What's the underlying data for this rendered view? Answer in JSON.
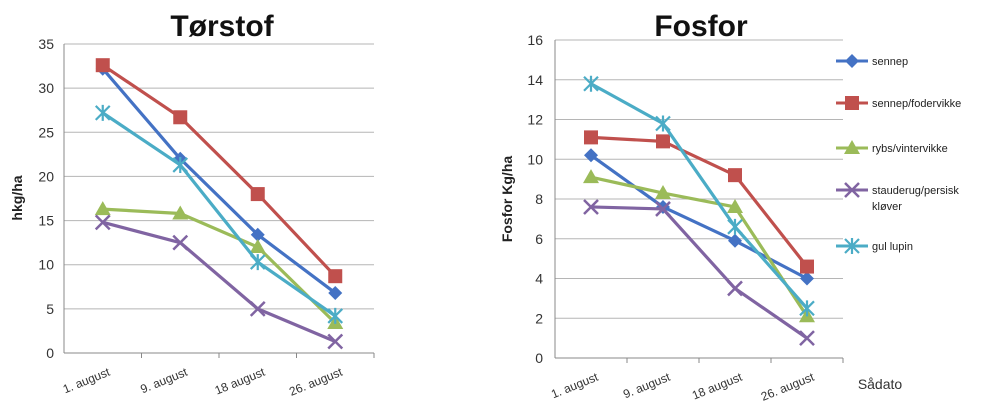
{
  "chart_data": [
    {
      "type": "line",
      "title": "Tørstof",
      "xlabel": "",
      "ylabel": "hkg/ha",
      "categories": [
        "1. august",
        "9. august",
        "18 august",
        "26. august"
      ],
      "ylim": [
        0,
        35
      ],
      "yticks": [
        0,
        5,
        10,
        15,
        20,
        25,
        30,
        35
      ],
      "grid": true,
      "legend": "none",
      "series": [
        {
          "name": "sennep",
          "values": [
            32.2,
            22,
            13.4,
            6.8
          ],
          "color": "#4472C4",
          "marker": "diamond"
        },
        {
          "name": "sennep/fodervikke",
          "values": [
            32.6,
            26.7,
            18,
            8.7
          ],
          "color": "#C0504D",
          "marker": "square"
        },
        {
          "name": "rybs/vintervikke",
          "values": [
            16.3,
            15.8,
            12,
            3.4
          ],
          "color": "#9BBB59",
          "marker": "triangle"
        },
        {
          "name": "stauderug/persisk kløver",
          "values": [
            14.8,
            12.5,
            5,
            1.3
          ],
          "color": "#8064A2",
          "marker": "x"
        },
        {
          "name": "gul lupin",
          "values": [
            27.2,
            21.3,
            10.3,
            4.2
          ],
          "color": "#4BACC6",
          "marker": "star"
        }
      ]
    },
    {
      "type": "line",
      "title": "Fosfor",
      "xlabel": "Sådato",
      "ylabel": "Fosfor Kg/ha",
      "categories": [
        "1. august",
        "9. august",
        "18 august",
        "26. august"
      ],
      "ylim": [
        0,
        16
      ],
      "yticks": [
        0,
        2,
        4,
        6,
        8,
        10,
        12,
        14,
        16
      ],
      "grid": true,
      "legend": "right",
      "series": [
        {
          "name": "sennep",
          "values": [
            10.2,
            7.6,
            5.9,
            4
          ],
          "color": "#4472C4",
          "marker": "diamond"
        },
        {
          "name": "sennep/fodervikke",
          "values": [
            11.1,
            10.9,
            9.2,
            4.6
          ],
          "color": "#C0504D",
          "marker": "square"
        },
        {
          "name": "rybs/vintervikke",
          "values": [
            9.1,
            8.3,
            7.6,
            2.1
          ],
          "color": "#9BBB59",
          "marker": "triangle"
        },
        {
          "name": "stauderug/persisk kløver",
          "values": [
            7.6,
            7.5,
            3.5,
            1
          ],
          "color": "#8064A2",
          "marker": "x"
        },
        {
          "name": "gul lupin",
          "values": [
            13.8,
            11.8,
            6.6,
            2.5
          ],
          "color": "#4BACC6",
          "marker": "star"
        }
      ]
    }
  ],
  "legend": {
    "entries": [
      {
        "lines": [
          "sennep"
        ]
      },
      {
        "lines": [
          "sennep/fodervikke"
        ]
      },
      {
        "lines": [
          "rybs/vintervikke"
        ]
      },
      {
        "lines": [
          "stauderug/persisk",
          "kløver"
        ]
      },
      {
        "lines": [
          "gul lupin"
        ]
      }
    ]
  }
}
